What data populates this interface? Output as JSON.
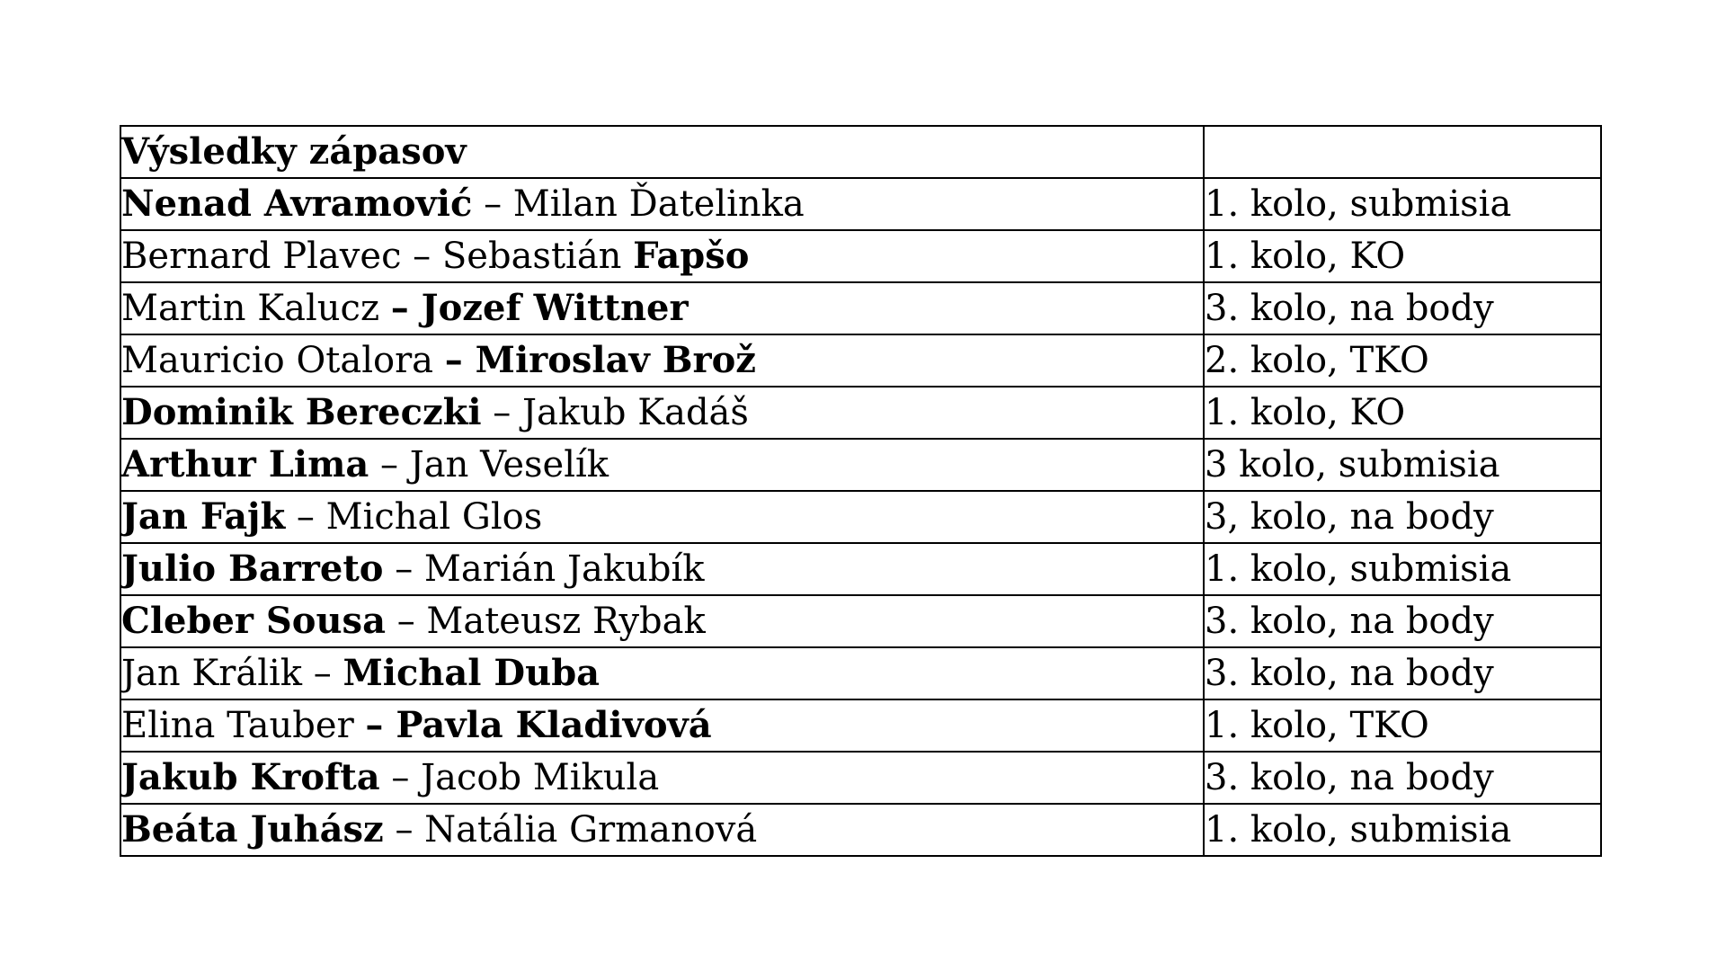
{
  "page": {
    "background_color": "#ffffff",
    "text_color": "#000000",
    "border_color": "#000000"
  },
  "table": {
    "header": "Výsledky zápasov",
    "rows": [
      {
        "fighters": [
          {
            "text": "Nenad Avramović",
            "bold": true
          },
          {
            "text": " – Milan Ďatelinka",
            "bold": false
          }
        ],
        "result": "1. kolo, submisia"
      },
      {
        "fighters": [
          {
            "text": "Bernard Plavec – Sebastián ",
            "bold": false
          },
          {
            "text": "Fapšo",
            "bold": true
          }
        ],
        "result": "1. kolo, KO"
      },
      {
        "fighters": [
          {
            "text": "Martin Kalucz ",
            "bold": false
          },
          {
            "text": "– Jozef Wittner",
            "bold": true
          }
        ],
        "result": "3. kolo, na body"
      },
      {
        "fighters": [
          {
            "text": "Mauricio Otalora ",
            "bold": false
          },
          {
            "text": "– Miroslav Brož",
            "bold": true
          }
        ],
        "result": "2. kolo, TKO"
      },
      {
        "fighters": [
          {
            "text": "Dominik Bereczki",
            "bold": true
          },
          {
            "text": " – Jakub Kadáš",
            "bold": false
          }
        ],
        "result": "1. kolo, KO"
      },
      {
        "fighters": [
          {
            "text": "Arthur Lima",
            "bold": true
          },
          {
            "text": " – Jan Veselík",
            "bold": false
          }
        ],
        "result": "3 kolo, submisia"
      },
      {
        "fighters": [
          {
            "text": "Jan Fajk",
            "bold": true
          },
          {
            "text": " – Michal Glos",
            "bold": false
          }
        ],
        "result": "3, kolo, na body"
      },
      {
        "fighters": [
          {
            "text": "Julio Barreto",
            "bold": true
          },
          {
            "text": " – Marián Jakubík",
            "bold": false
          }
        ],
        "result": "1. kolo, submisia"
      },
      {
        "fighters": [
          {
            "text": "Cleber Sousa",
            "bold": true
          },
          {
            "text": " – Mateusz Rybak",
            "bold": false
          }
        ],
        "result": "3. kolo, na body"
      },
      {
        "fighters": [
          {
            "text": "Jan Králik – ",
            "bold": false
          },
          {
            "text": "Michal Duba",
            "bold": true
          }
        ],
        "result": "3. kolo, na body"
      },
      {
        "fighters": [
          {
            "text": "Elina Tauber ",
            "bold": false
          },
          {
            "text": "– Pavla Kladivová",
            "bold": true
          }
        ],
        "result": "1. kolo, TKO"
      },
      {
        "fighters": [
          {
            "text": "Jakub Krofta",
            "bold": true
          },
          {
            "text": " – Jacob Mikula",
            "bold": false
          }
        ],
        "result": "3. kolo, na body"
      },
      {
        "fighters": [
          {
            "text": "Beáta Juhász",
            "bold": true
          },
          {
            "text": " – Natália Grmanová",
            "bold": false
          }
        ],
        "result": "1. kolo, submisia"
      }
    ]
  }
}
